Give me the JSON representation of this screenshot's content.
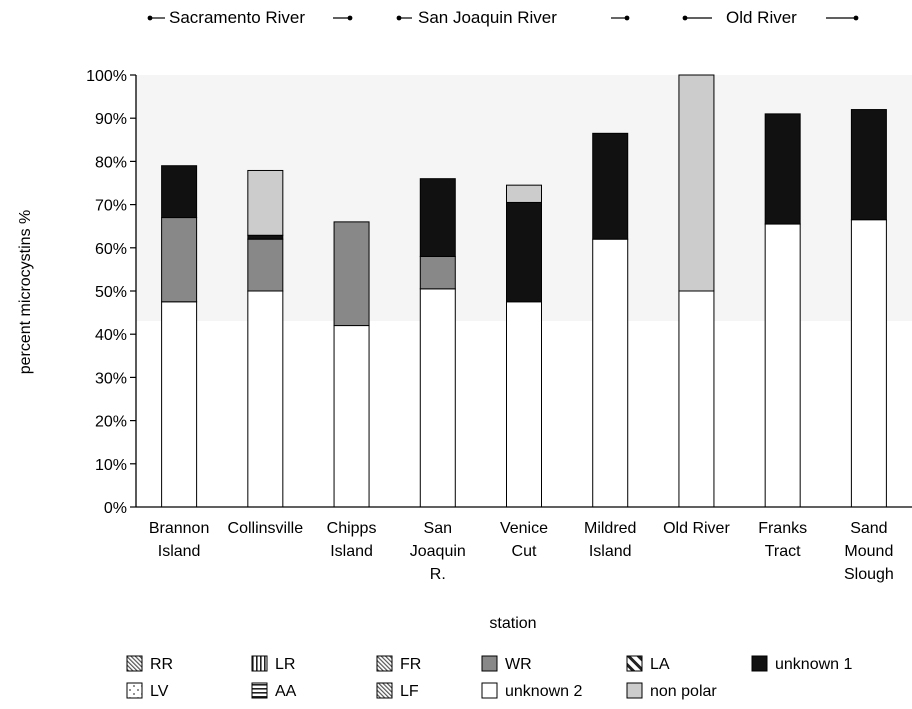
{
  "chart_data": {
    "type": "bar",
    "stacked": true,
    "title": "",
    "xlabel": "station",
    "ylabel": "percent microcystins %",
    "ylim": [
      0,
      100
    ],
    "y_ticks": [
      "0%",
      "10%",
      "20%",
      "30%",
      "40%",
      "50%",
      "60%",
      "70%",
      "80%",
      "90%",
      "100%"
    ],
    "grid": false,
    "background": "#f5f5f5",
    "categories": [
      [
        "Brannon",
        "Island"
      ],
      [
        "Collinsville"
      ],
      [
        "Chipps",
        "Island"
      ],
      [
        "San",
        "Joaquin",
        "R."
      ],
      [
        "Venice",
        "Cut"
      ],
      [
        "Mildred",
        "Island"
      ],
      [
        "Old River"
      ],
      [
        "Franks",
        "Tract"
      ],
      [
        "Sand",
        "Mound",
        "Slough"
      ]
    ],
    "river_groups": [
      {
        "name": "Sacramento River",
        "from": 0,
        "to": 2
      },
      {
        "name": "San Joaquin River",
        "from": 3,
        "to": 5
      },
      {
        "name": "Old River",
        "from": 6,
        "to": 8
      }
    ],
    "series": [
      {
        "name": "RR",
        "pattern": "white",
        "values": [
          0,
          0,
          0,
          0,
          0,
          0,
          0,
          0,
          0
        ]
      },
      {
        "name": "LR",
        "pattern": "white",
        "values": [
          0,
          0,
          0,
          0,
          0,
          0,
          0,
          0,
          0
        ]
      },
      {
        "name": "FR",
        "pattern": "white",
        "values": [
          0,
          0,
          0,
          0,
          0,
          0,
          0,
          0,
          0
        ]
      },
      {
        "name": "WR",
        "pattern": "dark-grey",
        "values": [
          19.5,
          12,
          24,
          7.5,
          0,
          0,
          0,
          0,
          0
        ]
      },
      {
        "name": "LA",
        "pattern": "white",
        "values": [
          0,
          0,
          0,
          0,
          0,
          0,
          0,
          0,
          0
        ]
      },
      {
        "name": "unknown 1",
        "pattern": "black",
        "values": [
          12,
          0.9,
          0,
          18,
          23,
          24.5,
          0,
          25.5,
          25.5
        ]
      },
      {
        "name": "LV",
        "pattern": "white",
        "values": [
          0,
          0,
          0,
          0,
          0,
          0,
          0,
          0,
          0
        ]
      },
      {
        "name": "AA",
        "pattern": "white",
        "values": [
          0,
          0,
          0,
          0,
          0,
          0,
          0,
          0,
          0
        ]
      },
      {
        "name": "LF",
        "pattern": "white",
        "values": [
          0,
          0,
          0,
          0,
          0,
          0,
          0,
          0,
          0
        ]
      },
      {
        "name": "unknown 2",
        "pattern": "white",
        "values": [
          47.5,
          50,
          42,
          50.5,
          47.5,
          62,
          50,
          65.5,
          66.5
        ]
      },
      {
        "name": "non polar",
        "pattern": "light-grey",
        "values": [
          0,
          15,
          0,
          0,
          4,
          0,
          50,
          0,
          0
        ]
      }
    ],
    "legend_position": "bottom",
    "legend_rows": [
      [
        "RR",
        "LR",
        "FR",
        "WR",
        "LA",
        "unknown 1"
      ],
      [
        "LV",
        "AA",
        "LF",
        "unknown 2",
        "non polar"
      ]
    ]
  }
}
